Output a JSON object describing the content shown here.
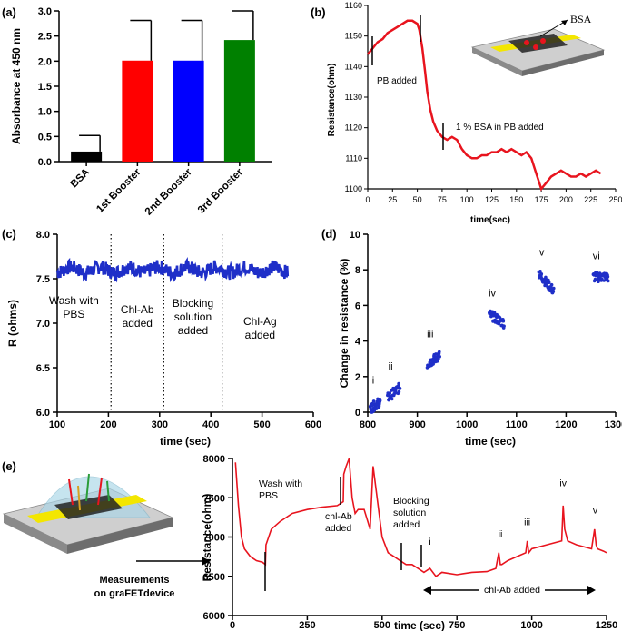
{
  "chart_data": [
    {
      "panel": "(a)",
      "type": "bar",
      "ylabel": "Absorbance at 450 nm",
      "ylim": [
        0,
        3.0
      ],
      "yticks": [
        0.0,
        0.5,
        1.0,
        1.5,
        2.0,
        2.5,
        3.0
      ],
      "ytick_labels": [
        "0.0",
        "0.5",
        "1.0",
        "1.5",
        "2.0",
        "2.5",
        "3.0"
      ],
      "categories": [
        "BSA",
        "1st Booster",
        "2nd Booster",
        "3rd Booster"
      ],
      "values": [
        0.2,
        2.01,
        2.01,
        2.42
      ],
      "errors": [
        0.32,
        0.8,
        0.8,
        0.58
      ],
      "colors": [
        "#000000",
        "#ff0000",
        "#0000ff",
        "#008000"
      ]
    },
    {
      "panel": "(b)",
      "type": "line",
      "xlabel": "time(sec)",
      "ylabel": "Resistance(ohm)",
      "xlim": [
        0,
        250
      ],
      "ylim": [
        1100,
        1160
      ],
      "xticks": [
        0,
        25,
        50,
        75,
        100,
        125,
        150,
        175,
        200,
        225,
        250
      ],
      "yticks": [
        1100,
        1110,
        1120,
        1130,
        1140,
        1150,
        1160
      ],
      "color": "#e8141e",
      "x": [
        0,
        5,
        10,
        15,
        20,
        25,
        30,
        35,
        40,
        45,
        50,
        52,
        55,
        58,
        60,
        63,
        66,
        70,
        75,
        80,
        85,
        90,
        95,
        100,
        105,
        110,
        115,
        120,
        125,
        130,
        135,
        140,
        145,
        150,
        155,
        160,
        165,
        170,
        175,
        180,
        185,
        190,
        195,
        200,
        205,
        210,
        215,
        220,
        225,
        230,
        235
      ],
      "y": [
        1144,
        1146,
        1148,
        1149,
        1151,
        1152,
        1153,
        1154,
        1155,
        1155,
        1154,
        1152,
        1146,
        1138,
        1132,
        1126,
        1122,
        1119,
        1117,
        1116,
        1117,
        1116,
        1113,
        1111,
        1110,
        1110,
        1111,
        1111,
        1112,
        1112,
        1113,
        1112,
        1113,
        1112,
        1111,
        1112,
        1110,
        1105,
        1100,
        1102,
        1104,
        1105,
        1106,
        1105,
        1104,
        1104,
        1105,
        1104,
        1105,
        1106,
        1105
      ],
      "annotations": [
        "PB added",
        "1 % BSA in PB added"
      ],
      "inset_label": "BSA"
    },
    {
      "panel": "(c)",
      "type": "line",
      "xlabel": "time (sec)",
      "ylabel": "R (ohms)",
      "xlim": [
        100,
        600
      ],
      "ylim": [
        6.0,
        8.0
      ],
      "xticks": [
        100,
        200,
        300,
        400,
        500,
        600
      ],
      "yticks": [
        6.0,
        6.5,
        7.0,
        7.5,
        8.0
      ],
      "ytick_labels": [
        "6.0",
        "6.5",
        "7.0",
        "7.5",
        "8.0"
      ],
      "color": "#1f2fc8",
      "mean": 7.6,
      "x_start": 100,
      "x_end": 550,
      "dividers": [
        205,
        308,
        422
      ],
      "regions": [
        "Wash with PBS",
        "Chl-Ab added",
        "Blocking solution added",
        "Chl-Ag added"
      ]
    },
    {
      "panel": "(d)",
      "type": "scatter",
      "xlabel": "time (sec)",
      "ylabel": "Change in resistance (%)",
      "xlim": [
        800,
        1300
      ],
      "ylim": [
        0,
        10
      ],
      "xticks": [
        800,
        900,
        1000,
        1100,
        1200,
        1300
      ],
      "yticks": [
        0,
        2,
        4,
        6,
        8,
        10
      ],
      "color": "#1f2fc8",
      "clusters": [
        {
          "label": "i",
          "x_start": 805,
          "x_end": 825,
          "y_start": 0.2,
          "y_end": 0.6
        },
        {
          "label": "ii",
          "x_start": 840,
          "x_end": 865,
          "y_start": 0.8,
          "y_end": 1.4
        },
        {
          "label": "iii",
          "x_start": 920,
          "x_end": 945,
          "y_start": 2.7,
          "y_end": 3.2
        },
        {
          "label": "iv",
          "x_start": 1045,
          "x_end": 1075,
          "y_start": 5.5,
          "y_end": 5.0
        },
        {
          "label": "v",
          "x_start": 1145,
          "x_end": 1175,
          "y_start": 7.8,
          "y_end": 6.8
        },
        {
          "label": "vi",
          "x_start": 1255,
          "x_end": 1285,
          "y_start": 7.6,
          "y_end": 7.6
        }
      ]
    },
    {
      "panel": "(e)",
      "type": "line",
      "xlabel": "time (sec)",
      "ylabel": "Resistance(ohm)",
      "xlim": [
        0,
        1250
      ],
      "ylim": [
        6000,
        8000
      ],
      "xticks": [
        0,
        250,
        500,
        750,
        1000,
        1250
      ],
      "yticks": [
        6000,
        6500,
        7000,
        7500,
        8000
      ],
      "color": "#e8141e",
      "x": [
        10,
        20,
        30,
        40,
        60,
        80,
        100,
        110,
        112,
        130,
        160,
        200,
        250,
        300,
        350,
        370,
        372,
        380,
        390,
        400,
        410,
        420,
        440,
        460,
        470,
        480,
        500,
        520,
        540,
        560,
        580,
        600,
        620,
        640,
        660,
        680,
        700,
        750,
        800,
        850,
        880,
        890,
        895,
        900,
        920,
        950,
        980,
        985,
        990,
        1000,
        1050,
        1100,
        1105,
        1110,
        1120,
        1150,
        1200,
        1210,
        1215,
        1220,
        1240,
        1250
      ],
      "y": [
        7950,
        7400,
        7000,
        6850,
        6750,
        6700,
        6680,
        6650,
        6900,
        7100,
        7200,
        7300,
        7350,
        7380,
        7400,
        7450,
        7800,
        7900,
        8000,
        7500,
        7300,
        7350,
        7350,
        7100,
        7900,
        7600,
        7000,
        6800,
        6750,
        6700,
        6650,
        6650,
        6600,
        6550,
        6600,
        6500,
        6550,
        6520,
        6550,
        6560,
        6600,
        6800,
        6650,
        6650,
        6700,
        6750,
        6800,
        6950,
        6800,
        6850,
        6900,
        6950,
        7400,
        7100,
        6950,
        6900,
        6850,
        7100,
        6900,
        6850,
        6820,
        6800
      ],
      "annotations": [
        "Wash with PBS",
        "chl-Ab added",
        "Blocking solution added",
        "chl-Ab added"
      ],
      "peak_labels": [
        "i",
        "ii",
        "iii",
        "iv",
        "v"
      ],
      "side_caption": "Measurements on graFETdevice"
    }
  ],
  "panel_labels": [
    "(a)",
    "(b)",
    "(c)",
    "(d)",
    "(e)"
  ]
}
